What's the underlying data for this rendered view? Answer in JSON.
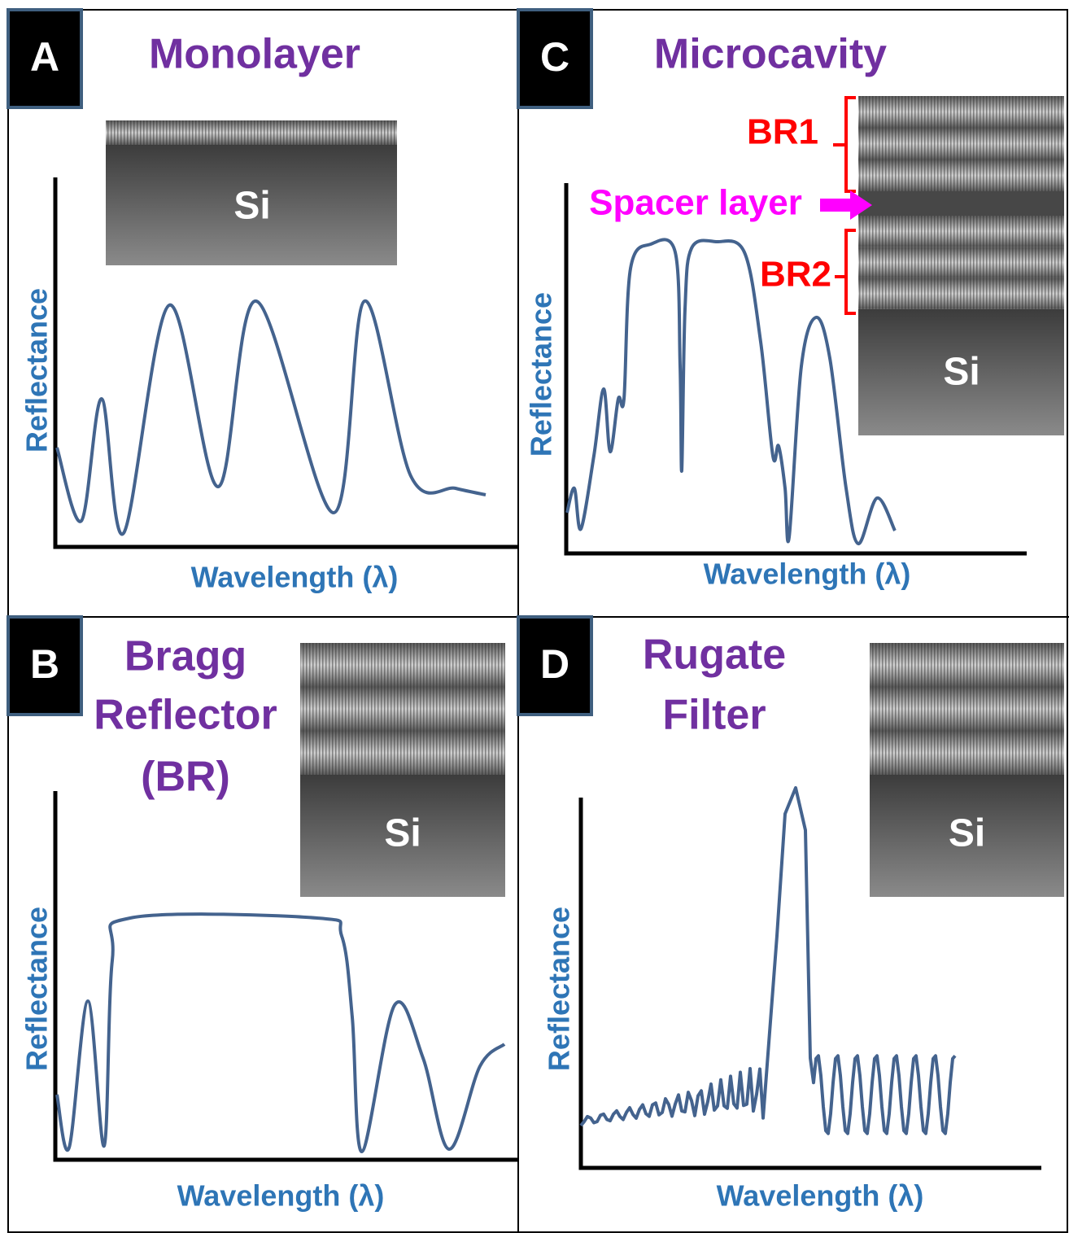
{
  "panels": [
    {
      "letter": "A",
      "title_lines": [
        "Monolayer"
      ],
      "substrate": "Si",
      "y_label": "Reflectance",
      "x_label": "Wavelength (λ)"
    },
    {
      "letter": "B",
      "title_lines": [
        "Bragg",
        "Reflector",
        "(BR)"
      ],
      "substrate": "Si",
      "y_label": "Reflectance",
      "x_label": "Wavelength (λ)"
    },
    {
      "letter": "C",
      "title_lines": [
        "Microcavity"
      ],
      "substrate": "Si",
      "y_label": "Reflectance",
      "x_label": "Wavelength (λ)",
      "layer_labels": [
        "BR1",
        "Spacer layer",
        "BR2"
      ]
    },
    {
      "letter": "D",
      "title_lines": [
        "Rugate",
        "Filter"
      ],
      "substrate": "Si",
      "y_label": "Reflectance",
      "x_label": "Wavelength (λ)"
    }
  ]
}
